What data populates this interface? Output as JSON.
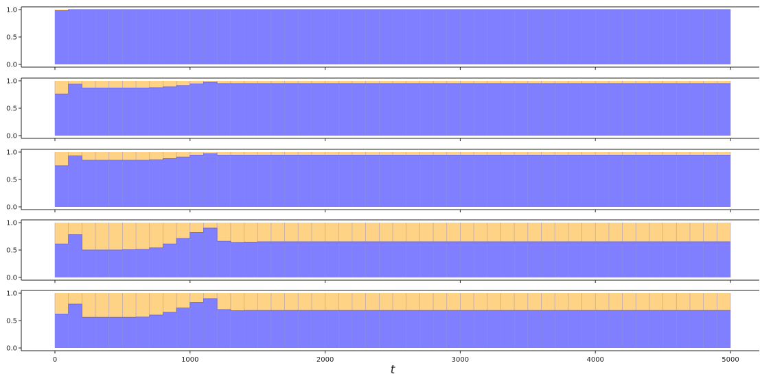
{
  "chart_data": {
    "type": "area",
    "layout": "5 stacked panels sharing the x axis",
    "xlabel": "t",
    "xlim": [
      0,
      5000
    ],
    "ylim": [
      0,
      1
    ],
    "x_ticks": [
      0,
      1000,
      2000,
      3000,
      4000,
      5000
    ],
    "x_tick_labels": [
      "0",
      "1000",
      "2000",
      "3000",
      "4000",
      "5000"
    ],
    "y_ticks": [
      0,
      0.5,
      1
    ],
    "y_tick_labels": [
      "0.0",
      "0.5",
      "1.0"
    ],
    "bin_width": 100,
    "grid": false,
    "legend": "none",
    "colors": {
      "lower": "#7f7fff",
      "upper": "#ffd386",
      "bin_edge": "#8a8ad0"
    },
    "panels": [
      {
        "lower": [
          0.98,
          1,
          1,
          1,
          1,
          1,
          1,
          1,
          1,
          1,
          1,
          1,
          1,
          1,
          1,
          1,
          1,
          1,
          1,
          1,
          1,
          1,
          1,
          1,
          1,
          1,
          1,
          1,
          1,
          1,
          1,
          1,
          1,
          1,
          1,
          1,
          1,
          1,
          1,
          1,
          1,
          1,
          1,
          1,
          1,
          1,
          1,
          1,
          1,
          1
        ]
      },
      {
        "lower": [
          0.76,
          0.94,
          0.87,
          0.87,
          0.87,
          0.87,
          0.87,
          0.875,
          0.89,
          0.915,
          0.945,
          0.975,
          0.95,
          0.95,
          0.95,
          0.95,
          0.95,
          0.95,
          0.95,
          0.95,
          0.95,
          0.95,
          0.95,
          0.95,
          0.95,
          0.95,
          0.95,
          0.95,
          0.95,
          0.95,
          0.95,
          0.95,
          0.95,
          0.95,
          0.95,
          0.95,
          0.95,
          0.95,
          0.95,
          0.95,
          0.95,
          0.95,
          0.95,
          0.95,
          0.95,
          0.95,
          0.95,
          0.95,
          0.95,
          0.95
        ]
      },
      {
        "lower": [
          0.75,
          0.93,
          0.85,
          0.85,
          0.85,
          0.85,
          0.85,
          0.86,
          0.88,
          0.91,
          0.945,
          0.97,
          0.945,
          0.945,
          0.945,
          0.945,
          0.945,
          0.945,
          0.945,
          0.945,
          0.945,
          0.945,
          0.945,
          0.945,
          0.945,
          0.945,
          0.945,
          0.945,
          0.945,
          0.945,
          0.945,
          0.945,
          0.945,
          0.945,
          0.945,
          0.945,
          0.945,
          0.945,
          0.945,
          0.945,
          0.945,
          0.945,
          0.945,
          0.945,
          0.945,
          0.945,
          0.945,
          0.945,
          0.945,
          0.945
        ]
      },
      {
        "lower": [
          0.61,
          0.78,
          0.5,
          0.5,
          0.5,
          0.505,
          0.51,
          0.54,
          0.61,
          0.71,
          0.82,
          0.9,
          0.66,
          0.64,
          0.645,
          0.65,
          0.65,
          0.65,
          0.65,
          0.65,
          0.65,
          0.65,
          0.65,
          0.65,
          0.65,
          0.65,
          0.65,
          0.65,
          0.65,
          0.65,
          0.65,
          0.65,
          0.65,
          0.65,
          0.65,
          0.65,
          0.65,
          0.65,
          0.65,
          0.65,
          0.65,
          0.65,
          0.65,
          0.65,
          0.65,
          0.65,
          0.65,
          0.65,
          0.65,
          0.65
        ]
      },
      {
        "lower": [
          0.62,
          0.8,
          0.56,
          0.56,
          0.56,
          0.56,
          0.565,
          0.6,
          0.65,
          0.73,
          0.83,
          0.9,
          0.7,
          0.68,
          0.685,
          0.685,
          0.685,
          0.685,
          0.685,
          0.685,
          0.685,
          0.685,
          0.685,
          0.685,
          0.685,
          0.685,
          0.685,
          0.685,
          0.685,
          0.685,
          0.685,
          0.685,
          0.685,
          0.685,
          0.685,
          0.685,
          0.685,
          0.685,
          0.685,
          0.685,
          0.685,
          0.685,
          0.685,
          0.685,
          0.685,
          0.685,
          0.685,
          0.685,
          0.685,
          0.685
        ]
      }
    ]
  }
}
